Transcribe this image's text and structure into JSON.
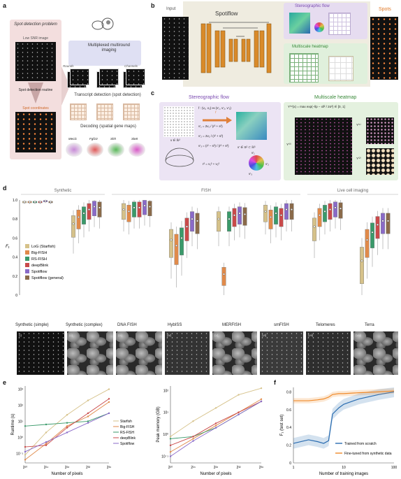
{
  "panel_a": {
    "label": "a",
    "title": "Spot detection problem",
    "low_snr": "Low SNR image",
    "routine": "Spot detection routine",
    "coords": "Spot coordinates",
    "multiplexed": "Multiplexed multiround imaging",
    "rounds": "Rounds",
    "channels": "Channels",
    "transcript": "Transcript detection (spot detection)",
    "decoding": "Decoding (spatial gene maps)",
    "genes": [
      "Mecl1",
      "Fgf10",
      "Shh",
      "Sle8"
    ]
  },
  "panel_b": {
    "label": "b",
    "input": "Input",
    "spotiflow": "Spotiflow",
    "stereo": "Stereographic flow",
    "heatmap": "Multiscale heatmap",
    "spots": "Spots"
  },
  "panel_c": {
    "label": "c",
    "stereo_title": "Stereographic flow",
    "heatmap_title": "Multiscale heatmap",
    "f_map": "f : (v₁, v₂) ↦ (v′₁, v′₂, v′₃)",
    "f": "f",
    "eq1": "v′₁ = 2v₁ / (r² + s²)",
    "eq2": "v′₂ = 2v₂ / (r² + s²)",
    "eq3": "v′₃ = (r² − s²) / (r² + s²)",
    "v_in": "v ∈ ℝ²",
    "r_eq": "r² = v₁² + v₂²",
    "v_out": "v′ ∈ S² ⊂ ℝ³",
    "heat_eq": "Y⁽ˢ⁾(x) = max exp(−‖p − x‖² / 2σ²) ∈ [0, 1]",
    "y0": "Y⁽⁰⁾",
    "y1": "Y⁽¹⁾",
    "y2": "Y⁽²⁾",
    "v1": "v′₁",
    "v2": "v′₂",
    "v3": "v′₃"
  },
  "panel_d": {
    "label": "d",
    "groups": [
      "Synthetic",
      "FISH",
      "Live cell imaging"
    ],
    "ylabel": "F₁",
    "yticks": [
      "1.0",
      "0.8",
      "0.6",
      "0.4",
      "0.2",
      "0"
    ],
    "legend": [
      "LoG (Starfish)",
      "Big-FISH",
      "RS-FISH",
      "deepBlink",
      "Spotiflow",
      "Spotiflow (general)"
    ],
    "colors": [
      "#d6c28a",
      "#e08a4a",
      "#3a9a6a",
      "#c94a4a",
      "#8a6ac8",
      "#8a6a4a"
    ],
    "datasets": [
      {
        "roman": "(i)",
        "name": "Synthetic (simple)"
      },
      {
        "roman": "(ii)",
        "name": "Synthetic (complex)"
      },
      {
        "roman": "(iii)",
        "name": "DNA FISH"
      },
      {
        "roman": "(iv)",
        "name": "HybISS"
      },
      {
        "roman": "(v)",
        "name": "MERFISH"
      },
      {
        "roman": "(vi)",
        "name": "smFISH"
      },
      {
        "roman": "(vii)",
        "name": "Telomeres"
      },
      {
        "roman": "(viii)",
        "name": "Terra"
      }
    ]
  },
  "chart_data": [
    {
      "type": "box",
      "panel": "d",
      "ylabel": "F₁",
      "ylim": [
        0,
        1.0
      ],
      "methods": [
        "LoG (Starfish)",
        "Big-FISH",
        "RS-FISH",
        "deepBlink",
        "Spotiflow",
        "Spotiflow (general)"
      ],
      "datasets": [
        "Synthetic (simple)",
        "Synthetic (complex)",
        "DNA FISH",
        "HybISS",
        "MERFISH",
        "smFISH",
        "Telomeres",
        "Terra"
      ],
      "medians": [
        [
          0.98,
          0.98,
          0.98,
          0.98,
          0.99,
          0.98
        ],
        [
          0.75,
          0.82,
          0.86,
          0.9,
          0.93,
          0.92
        ],
        [
          0.9,
          0.88,
          0.92,
          0.92,
          0.94,
          0.93
        ],
        [
          0.58,
          0.52,
          0.6,
          0.72,
          0.8,
          0.78
        ],
        [
          0.8,
          0.22,
          0.8,
          0.84,
          0.86,
          0.85
        ],
        [
          0.88,
          0.82,
          0.86,
          0.84,
          0.9,
          0.9
        ],
        [
          0.72,
          0.84,
          0.88,
          0.9,
          0.92,
          0.91
        ],
        [
          0.36,
          0.58,
          0.66,
          0.74,
          0.78,
          0.78
        ]
      ]
    },
    {
      "type": "line",
      "panel": "e-left",
      "xlabel": "Number of pixels",
      "ylabel": "Runtime (s)",
      "xscale": "log2",
      "yscale": "log10",
      "x": [
        "2²⁰",
        "2²⁴",
        "2²⁸",
        "2³²",
        "2³⁶"
      ],
      "x_exp": [
        20,
        24,
        28,
        32,
        36
      ],
      "yticks": [
        "10³",
        "10²",
        "10¹",
        "10⁰",
        "10⁻¹"
      ],
      "ylim_log": [
        -1.6,
        3.2
      ],
      "series": [
        {
          "name": "Starfish",
          "color": "#d6c28a",
          "log10_values": [
            -1.1,
            0.3,
            1.4,
            2.3,
            3.0
          ]
        },
        {
          "name": "Big-FISH",
          "color": "#e08a4a",
          "log10_values": [
            -1.4,
            -0.4,
            0.7,
            1.3,
            2.2
          ]
        },
        {
          "name": "RS-FISH",
          "color": "#3a9a6a",
          "log10_values": [
            0.7,
            0.8,
            0.9,
            1.0,
            1.5
          ]
        },
        {
          "name": "deepBlink",
          "color": "#c94a4a",
          "log10_values": [
            -0.6,
            -0.5,
            0.6,
            1.5,
            2.4
          ]
        },
        {
          "name": "Spotiflow",
          "color": "#8a6ac8",
          "log10_values": [
            -0.9,
            -0.3,
            0.3,
            0.9,
            1.5
          ]
        }
      ]
    },
    {
      "type": "line",
      "panel": "e-right",
      "xlabel": "Number of pixels",
      "ylabel": "Peak memory (GB)",
      "xscale": "log2",
      "yscale": "log10",
      "x": [
        "2²⁰",
        "2²⁴",
        "2²⁸",
        "2³²",
        "2³⁶"
      ],
      "x_exp": [
        20,
        24,
        28,
        32,
        36
      ],
      "yticks": [
        "10²",
        "10¹",
        "10⁰",
        "10⁻¹"
      ],
      "ylim_log": [
        -1.3,
        2.2
      ],
      "series": [
        {
          "name": "Starfish",
          "color": "#d6c28a",
          "log10_values": [
            -0.1,
            0.6,
            1.2,
            1.8,
            2.1
          ]
        },
        {
          "name": "Big-FISH",
          "color": "#e08a4a",
          "log10_values": [
            -0.8,
            -0.2,
            0.4,
            1.0,
            1.6
          ]
        },
        {
          "name": "RS-FISH",
          "color": "#3a9a6a",
          "log10_values": [
            -0.2,
            -0.1,
            0.3,
            0.9,
            1.5
          ]
        },
        {
          "name": "deepBlink",
          "color": "#c94a4a",
          "log10_values": [
            -0.5,
            -0.1,
            0.5,
            1.0,
            1.5
          ]
        },
        {
          "name": "Spotiflow",
          "color": "#8a6ac8",
          "log10_values": [
            -1.0,
            -0.3,
            0.3,
            0.9,
            1.5
          ]
        }
      ]
    },
    {
      "type": "line",
      "panel": "f",
      "xlabel": "Number of training images",
      "ylabel": "F₁ (test set)",
      "xscale": "log10",
      "xticks": [
        "1",
        "10",
        "100"
      ],
      "yticks": [
        "0.8",
        "0.6",
        "0.4",
        "0.2",
        "0"
      ],
      "ylim": [
        0,
        0.85
      ],
      "x": [
        1,
        2,
        3,
        4,
        5,
        6,
        8,
        10,
        20,
        50,
        100
      ],
      "series": [
        {
          "name": "Trained from scratch",
          "color": "#2a6cb0",
          "values": [
            0.22,
            0.26,
            0.24,
            0.22,
            0.25,
            0.55,
            0.62,
            0.66,
            0.72,
            0.77,
            0.8
          ]
        },
        {
          "name": "Fine-tuned from synthetic data",
          "color": "#f08a2a",
          "values": [
            0.7,
            0.7,
            0.71,
            0.72,
            0.74,
            0.77,
            0.78,
            0.78,
            0.79,
            0.8,
            0.81
          ]
        }
      ]
    }
  ],
  "panel_e": {
    "label": "e"
  },
  "panel_f": {
    "label": "f"
  }
}
